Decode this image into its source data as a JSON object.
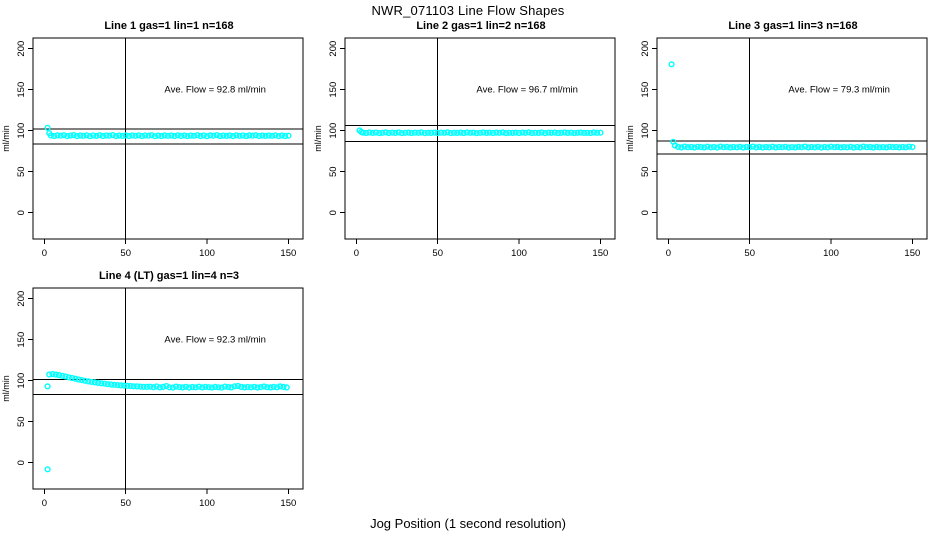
{
  "figure": {
    "title": "NWR_071103  Line Flow Shapes",
    "xlabel": "Jog Position (1 second resolution)",
    "point_color": "#00FFFF",
    "axis_color": "#000000",
    "background": "#FFFFFF"
  },
  "chart_data": [
    {
      "type": "scatter",
      "title": "Line 1 gas=1 lin=1 n=168",
      "n": 168,
      "ave_flow_ml_min": 92.8,
      "annotation": {
        "text": "Ave. Flow =  92.8  ml/min",
        "x": 105,
        "y": 150
      },
      "ylabel": "ml/min",
      "xticks": [
        0,
        50,
        100,
        150
      ],
      "yticks": [
        0,
        50,
        100,
        150,
        200
      ],
      "xrange": [
        -7,
        159
      ],
      "yrange": [
        -32,
        213
      ],
      "vline": 50,
      "hlines": [
        102.1,
        83.5
      ],
      "extra_points": [
        [
          2,
          103.5
        ],
        [
          3,
          97.0
        ]
      ],
      "band": {
        "x_start": 4,
        "x_step": 2,
        "y": [
          94.1,
          93.6,
          94.3,
          93.9,
          94.5,
          93.4,
          94.0,
          94.6,
          93.5,
          94.2,
          93.8,
          94.4,
          93.3,
          94.1,
          93.7,
          94.5,
          93.6,
          94.2,
          93.9,
          94.6,
          93.4,
          94.0,
          93.7,
          94.3,
          93.5,
          94.1,
          93.8,
          94.4,
          93.6,
          94.2,
          93.9,
          94.5,
          93.3,
          94.0,
          93.6,
          94.3,
          93.8,
          94.1,
          93.5,
          94.4,
          93.7,
          94.2,
          93.4,
          94.0,
          93.8,
          94.5,
          93.6,
          94.1,
          93.3,
          94.3,
          93.9,
          94.6,
          93.5,
          94.0,
          93.7,
          94.2,
          93.4,
          94.4,
          93.8,
          94.1,
          93.6,
          94.3,
          93.9,
          94.5,
          93.5,
          94.0,
          93.7,
          94.2,
          93.8,
          94.4,
          93.4,
          94.1,
          93.6,
          93.9
        ]
      }
    },
    {
      "type": "scatter",
      "title": "Line 2 gas=1 lin=2 n=168",
      "n": 168,
      "ave_flow_ml_min": 96.7,
      "annotation": {
        "text": "Ave. Flow =  96.7  ml/min",
        "x": 105,
        "y": 150
      },
      "ylabel": "ml/min",
      "xticks": [
        0,
        50,
        100,
        150
      ],
      "yticks": [
        0,
        50,
        100,
        150,
        200
      ],
      "xrange": [
        -7,
        159
      ],
      "yrange": [
        -32,
        213
      ],
      "vline": 50,
      "hlines": [
        106.4,
        87.0
      ],
      "extra_points": [
        [
          2,
          100.2
        ],
        [
          3,
          98.5
        ]
      ],
      "band": {
        "x_start": 4,
        "x_step": 2,
        "y": [
          97.6,
          97.2,
          97.8,
          97.3,
          97.7,
          97.1,
          97.5,
          97.9,
          97.2,
          97.6,
          97.3,
          97.8,
          97.1,
          97.5,
          97.7,
          97.2,
          97.6,
          97.4,
          97.8,
          97.1,
          97.5,
          97.3,
          97.7,
          97.2,
          97.6,
          97.4,
          97.9,
          97.1,
          97.5,
          97.3,
          97.7,
          97.2,
          97.8,
          97.4,
          97.6,
          97.1,
          97.5,
          97.8,
          97.3,
          97.6,
          97.2,
          97.7,
          97.4,
          97.8,
          97.1,
          97.5,
          97.3,
          97.6,
          97.2,
          97.7,
          97.4,
          97.9,
          97.2,
          97.5,
          97.3,
          97.8,
          97.1,
          97.6,
          97.4,
          97.7,
          97.2,
          97.5,
          97.8,
          97.3,
          97.6,
          97.1,
          97.4,
          97.7,
          97.3,
          97.5,
          97.2,
          97.8,
          97.4,
          97.6
        ]
      }
    },
    {
      "type": "scatter",
      "title": "Line 3 gas=1 lin=3 n=168",
      "n": 168,
      "ave_flow_ml_min": 79.3,
      "annotation": {
        "text": "Ave. Flow =  79.3  ml/min",
        "x": 105,
        "y": 150
      },
      "ylabel": "ml/min",
      "xticks": [
        0,
        50,
        100,
        150
      ],
      "yticks": [
        0,
        50,
        100,
        150,
        200
      ],
      "xrange": [
        -7,
        159
      ],
      "yrange": [
        -32,
        213
      ],
      "vline": 50,
      "hlines": [
        87.2,
        71.4
      ],
      "extra_points": [
        [
          2,
          181.0
        ],
        [
          3,
          86.5
        ],
        [
          4,
          82.0
        ]
      ],
      "band": {
        "x_start": 6,
        "x_step": 2,
        "y": [
          80.3,
          79.7,
          80.6,
          79.9,
          80.2,
          79.5,
          80.4,
          80.0,
          79.6,
          80.5,
          79.8,
          80.2,
          79.4,
          80.6,
          79.9,
          80.3,
          79.6,
          80.1,
          79.8,
          80.4,
          79.5,
          80.2,
          79.9,
          80.6,
          79.7,
          80.3,
          79.5,
          80.1,
          79.8,
          80.5,
          79.6,
          80.2,
          79.9,
          80.4,
          79.5,
          80.0,
          79.7,
          80.3,
          79.9,
          80.6,
          79.6,
          80.1,
          79.8,
          80.4,
          79.5,
          80.2,
          79.7,
          80.5,
          79.9,
          80.3,
          79.6,
          80.0,
          79.8,
          80.4,
          79.5,
          80.1,
          79.7,
          80.6,
          79.9,
          80.2,
          79.5,
          80.3,
          79.8,
          80.0,
          79.6,
          80.4,
          79.9,
          80.1,
          79.7,
          80.2,
          79.8,
          80.5,
          80.0
        ]
      }
    },
    {
      "type": "scatter",
      "title": "Line 4 (LT) gas=1 lin=4 n=3",
      "n": 3,
      "ave_flow_ml_min": 92.3,
      "annotation": {
        "text": "Ave. Flow =  92.3  ml/min",
        "x": 105,
        "y": 150
      },
      "ylabel": "ml/min",
      "xticks": [
        0,
        50,
        100,
        150
      ],
      "yticks": [
        0,
        50,
        100,
        150,
        200
      ],
      "xrange": [
        -7,
        159
      ],
      "yrange": [
        -32,
        213
      ],
      "vline": 50,
      "hlines": [
        101.5,
        83.1
      ],
      "extra_points": [
        [
          2,
          -8.0
        ],
        [
          2,
          93.0
        ]
      ],
      "band": {
        "x_start": 3,
        "x_step": 2,
        "y": [
          107.6,
          108.0,
          107.5,
          106.8,
          106.0,
          105.1,
          104.2,
          103.3,
          102.4,
          101.5,
          100.7,
          99.9,
          99.2,
          98.5,
          97.9,
          97.3,
          96.8,
          96.3,
          95.8,
          95.4,
          95.0,
          94.6,
          94.3,
          94.0,
          93.7,
          93.5,
          93.2,
          93.0,
          92.8,
          92.6,
          92.4,
          92.7,
          92.1,
          92.9,
          91.8,
          92.5,
          93.4,
          92.0,
          91.6,
          92.8,
          92.2,
          91.9,
          92.6,
          91.7,
          92.3,
          92.0,
          92.7,
          91.8,
          92.4,
          92.1,
          91.7,
          92.5,
          92.0,
          91.6,
          92.8,
          92.2,
          91.9,
          93.2,
          93.6,
          92.4,
          91.8,
          92.3,
          92.0,
          92.6,
          91.7,
          92.2,
          92.9,
          92.1,
          91.8,
          92.5,
          92.0,
          93.0,
          92.4,
          91.9
        ]
      }
    }
  ]
}
